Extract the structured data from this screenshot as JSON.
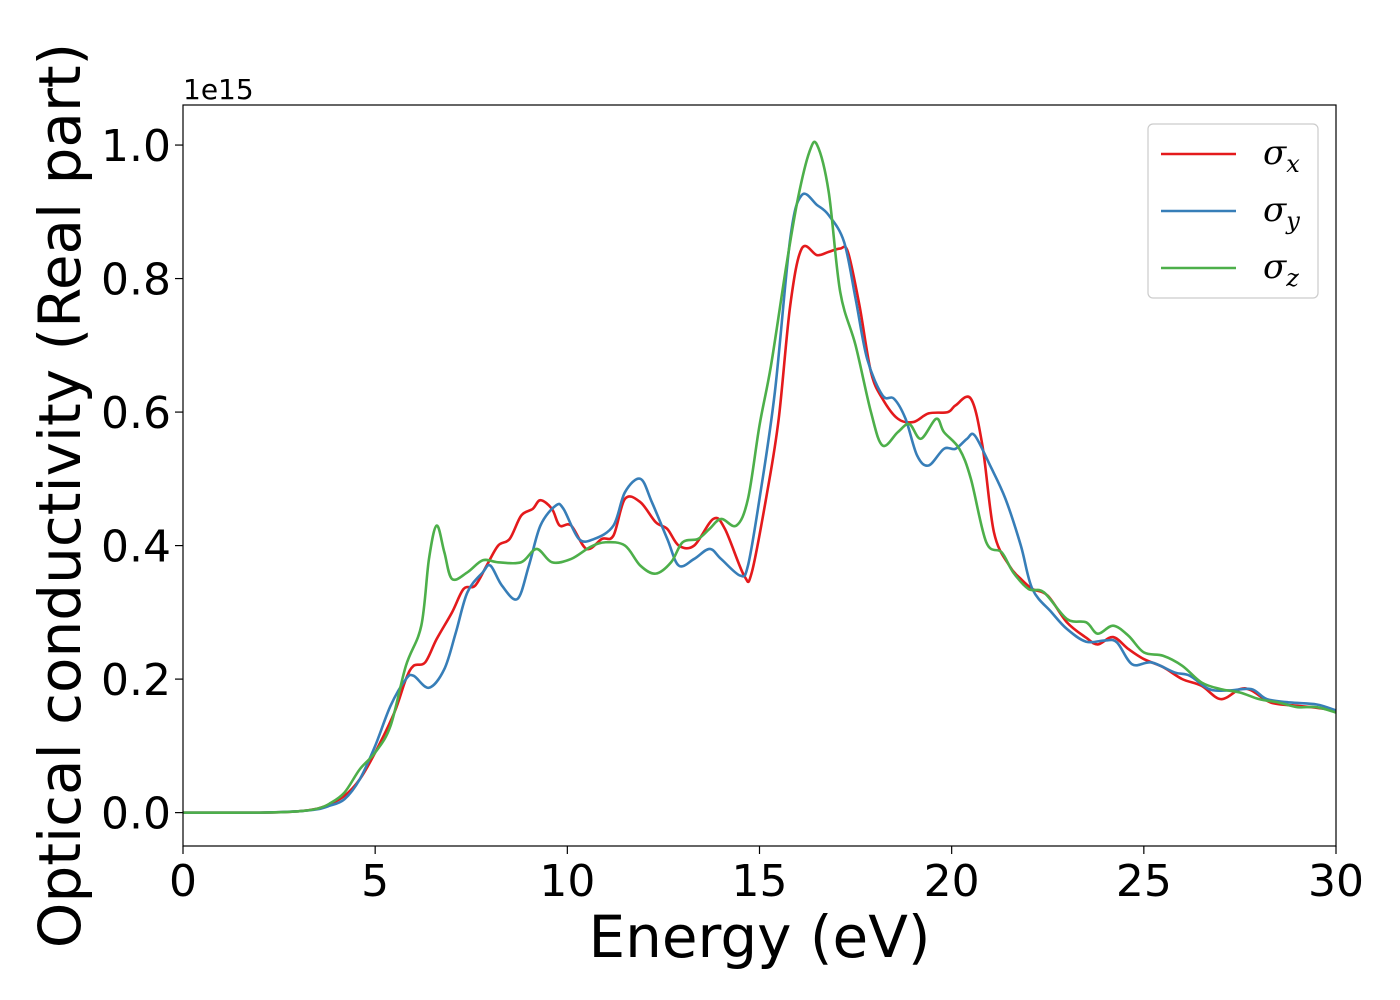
{
  "chart_data": {
    "type": "line",
    "xlabel": "Energy (eV)",
    "ylabel": "Optical conductivity (Real part)",
    "y_offset_label": "1e15",
    "xlim": [
      0,
      30
    ],
    "ylim": [
      -0.05,
      1.06
    ],
    "xticks": [
      0,
      5,
      10,
      15,
      20,
      25,
      30
    ],
    "yticks": [
      0.0,
      0.2,
      0.4,
      0.6,
      0.8,
      1.0
    ],
    "xtick_labels": [
      "0",
      "5",
      "10",
      "15",
      "20",
      "25",
      "30"
    ],
    "ytick_labels": [
      "0.0",
      "0.2",
      "0.4",
      "0.6",
      "0.8",
      "1.0"
    ],
    "grid": false,
    "legend_position": "top-right",
    "series": [
      {
        "name": "σx",
        "symbol": "σ",
        "subscript": "x",
        "color": "#e41a1c",
        "points": [
          [
            0,
            0
          ],
          [
            2,
            0
          ],
          [
            3,
            0.002
          ],
          [
            3.5,
            0.006
          ],
          [
            3.8,
            0.012
          ],
          [
            4.2,
            0.025
          ],
          [
            4.6,
            0.05
          ],
          [
            5,
            0.09
          ],
          [
            5.5,
            0.15
          ],
          [
            5.8,
            0.2
          ],
          [
            6,
            0.22
          ],
          [
            6.3,
            0.225
          ],
          [
            6.6,
            0.26
          ],
          [
            7,
            0.3
          ],
          [
            7.3,
            0.335
          ],
          [
            7.6,
            0.34
          ],
          [
            7.9,
            0.37
          ],
          [
            8.2,
            0.4
          ],
          [
            8.5,
            0.41
          ],
          [
            8.8,
            0.445
          ],
          [
            9.1,
            0.455
          ],
          [
            9.3,
            0.468
          ],
          [
            9.6,
            0.455
          ],
          [
            9.8,
            0.43
          ],
          [
            10.1,
            0.43
          ],
          [
            10.5,
            0.395
          ],
          [
            10.9,
            0.41
          ],
          [
            11.2,
            0.415
          ],
          [
            11.5,
            0.47
          ],
          [
            11.9,
            0.465
          ],
          [
            12.3,
            0.435
          ],
          [
            12.6,
            0.425
          ],
          [
            12.9,
            0.4
          ],
          [
            13.3,
            0.4
          ],
          [
            13.8,
            0.44
          ],
          [
            14.1,
            0.425
          ],
          [
            14.6,
            0.355
          ],
          [
            14.8,
            0.36
          ],
          [
            15.2,
            0.48
          ],
          [
            15.5,
            0.59
          ],
          [
            15.8,
            0.76
          ],
          [
            16.1,
            0.845
          ],
          [
            16.5,
            0.835
          ],
          [
            16.8,
            0.84
          ],
          [
            17.1,
            0.845
          ],
          [
            17.3,
            0.84
          ],
          [
            17.6,
            0.76
          ],
          [
            17.9,
            0.66
          ],
          [
            18.2,
            0.62
          ],
          [
            18.6,
            0.59
          ],
          [
            19,
            0.585
          ],
          [
            19.4,
            0.598
          ],
          [
            19.9,
            0.6
          ],
          [
            20.1,
            0.61
          ],
          [
            20.5,
            0.62
          ],
          [
            20.8,
            0.55
          ],
          [
            21.1,
            0.42
          ],
          [
            21.5,
            0.37
          ],
          [
            21.8,
            0.35
          ],
          [
            22.1,
            0.335
          ],
          [
            22.5,
            0.325
          ],
          [
            23,
            0.285
          ],
          [
            23.5,
            0.262
          ],
          [
            23.8,
            0.252
          ],
          [
            24.2,
            0.263
          ],
          [
            24.6,
            0.245
          ],
          [
            25,
            0.23
          ],
          [
            25.5,
            0.218
          ],
          [
            26,
            0.2
          ],
          [
            26.5,
            0.19
          ],
          [
            27,
            0.17
          ],
          [
            27.5,
            0.185
          ],
          [
            27.8,
            0.183
          ],
          [
            28.3,
            0.165
          ],
          [
            29,
            0.16
          ],
          [
            29.5,
            0.157
          ],
          [
            30,
            0.153
          ]
        ]
      },
      {
        "name": "σy",
        "symbol": "σ",
        "subscript": "y",
        "color": "#377eb8",
        "points": [
          [
            0,
            0
          ],
          [
            2,
            0
          ],
          [
            3,
            0.002
          ],
          [
            3.5,
            0.005
          ],
          [
            3.8,
            0.01
          ],
          [
            4.2,
            0.02
          ],
          [
            4.6,
            0.05
          ],
          [
            5,
            0.1
          ],
          [
            5.4,
            0.16
          ],
          [
            5.8,
            0.2
          ],
          [
            6,
            0.205
          ],
          [
            6.4,
            0.187
          ],
          [
            6.8,
            0.215
          ],
          [
            7.1,
            0.27
          ],
          [
            7.4,
            0.33
          ],
          [
            7.8,
            0.36
          ],
          [
            8,
            0.37
          ],
          [
            8.3,
            0.34
          ],
          [
            8.7,
            0.32
          ],
          [
            9,
            0.37
          ],
          [
            9.3,
            0.43
          ],
          [
            9.7,
            0.46
          ],
          [
            9.9,
            0.455
          ],
          [
            10.3,
            0.41
          ],
          [
            10.7,
            0.41
          ],
          [
            11.2,
            0.43
          ],
          [
            11.5,
            0.48
          ],
          [
            11.9,
            0.5
          ],
          [
            12.2,
            0.465
          ],
          [
            12.6,
            0.41
          ],
          [
            12.9,
            0.37
          ],
          [
            13.3,
            0.38
          ],
          [
            13.7,
            0.395
          ],
          [
            14,
            0.38
          ],
          [
            14.5,
            0.355
          ],
          [
            14.7,
            0.37
          ],
          [
            15,
            0.47
          ],
          [
            15.4,
            0.63
          ],
          [
            15.8,
            0.86
          ],
          [
            16.1,
            0.925
          ],
          [
            16.5,
            0.91
          ],
          [
            16.8,
            0.895
          ],
          [
            17.2,
            0.855
          ],
          [
            17.5,
            0.77
          ],
          [
            17.8,
            0.68
          ],
          [
            18.2,
            0.625
          ],
          [
            18.5,
            0.62
          ],
          [
            18.8,
            0.59
          ],
          [
            19.1,
            0.535
          ],
          [
            19.4,
            0.52
          ],
          [
            19.8,
            0.545
          ],
          [
            20.1,
            0.545
          ],
          [
            20.4,
            0.56
          ],
          [
            20.6,
            0.565
          ],
          [
            21,
            0.52
          ],
          [
            21.4,
            0.47
          ],
          [
            21.8,
            0.4
          ],
          [
            22.1,
            0.335
          ],
          [
            22.6,
            0.3
          ],
          [
            23,
            0.275
          ],
          [
            23.5,
            0.256
          ],
          [
            24,
            0.258
          ],
          [
            24.3,
            0.255
          ],
          [
            24.7,
            0.222
          ],
          [
            25.2,
            0.225
          ],
          [
            25.8,
            0.21
          ],
          [
            26.2,
            0.205
          ],
          [
            26.7,
            0.185
          ],
          [
            27.2,
            0.183
          ],
          [
            27.8,
            0.185
          ],
          [
            28.2,
            0.17
          ],
          [
            28.8,
            0.165
          ],
          [
            29.5,
            0.162
          ],
          [
            30,
            0.153
          ]
        ]
      },
      {
        "name": "σz",
        "symbol": "σ",
        "subscript": "z",
        "color": "#4daf4a",
        "points": [
          [
            0,
            0
          ],
          [
            2,
            0
          ],
          [
            3,
            0.002
          ],
          [
            3.5,
            0.006
          ],
          [
            3.8,
            0.013
          ],
          [
            4.2,
            0.03
          ],
          [
            4.6,
            0.065
          ],
          [
            5,
            0.09
          ],
          [
            5.4,
            0.13
          ],
          [
            5.8,
            0.22
          ],
          [
            6.2,
            0.28
          ],
          [
            6.4,
            0.38
          ],
          [
            6.6,
            0.43
          ],
          [
            6.8,
            0.39
          ],
          [
            7,
            0.35
          ],
          [
            7.4,
            0.36
          ],
          [
            7.8,
            0.378
          ],
          [
            8.2,
            0.375
          ],
          [
            8.8,
            0.375
          ],
          [
            9.2,
            0.395
          ],
          [
            9.6,
            0.375
          ],
          [
            10.1,
            0.38
          ],
          [
            10.6,
            0.398
          ],
          [
            11,
            0.405
          ],
          [
            11.5,
            0.4
          ],
          [
            11.9,
            0.37
          ],
          [
            12.3,
            0.358
          ],
          [
            12.7,
            0.375
          ],
          [
            13,
            0.405
          ],
          [
            13.4,
            0.41
          ],
          [
            13.7,
            0.425
          ],
          [
            14,
            0.44
          ],
          [
            14.4,
            0.43
          ],
          [
            14.7,
            0.47
          ],
          [
            15,
            0.58
          ],
          [
            15.3,
            0.67
          ],
          [
            15.7,
            0.82
          ],
          [
            16,
            0.92
          ],
          [
            16.3,
            0.99
          ],
          [
            16.5,
            1.0
          ],
          [
            16.8,
            0.93
          ],
          [
            17.1,
            0.78
          ],
          [
            17.5,
            0.7
          ],
          [
            17.9,
            0.6
          ],
          [
            18.2,
            0.55
          ],
          [
            18.6,
            0.57
          ],
          [
            18.9,
            0.582
          ],
          [
            19.2,
            0.56
          ],
          [
            19.6,
            0.59
          ],
          [
            19.8,
            0.57
          ],
          [
            20.2,
            0.545
          ],
          [
            20.5,
            0.5
          ],
          [
            20.9,
            0.405
          ],
          [
            21.3,
            0.39
          ],
          [
            21.6,
            0.36
          ],
          [
            22,
            0.335
          ],
          [
            22.4,
            0.33
          ],
          [
            23,
            0.29
          ],
          [
            23.5,
            0.285
          ],
          [
            23.8,
            0.268
          ],
          [
            24.2,
            0.28
          ],
          [
            24.6,
            0.265
          ],
          [
            25,
            0.24
          ],
          [
            25.5,
            0.235
          ],
          [
            26,
            0.22
          ],
          [
            26.5,
            0.195
          ],
          [
            27,
            0.185
          ],
          [
            27.5,
            0.18
          ],
          [
            28,
            0.17
          ],
          [
            28.5,
            0.165
          ],
          [
            29,
            0.158
          ],
          [
            29.5,
            0.158
          ],
          [
            30,
            0.15
          ]
        ]
      }
    ]
  }
}
